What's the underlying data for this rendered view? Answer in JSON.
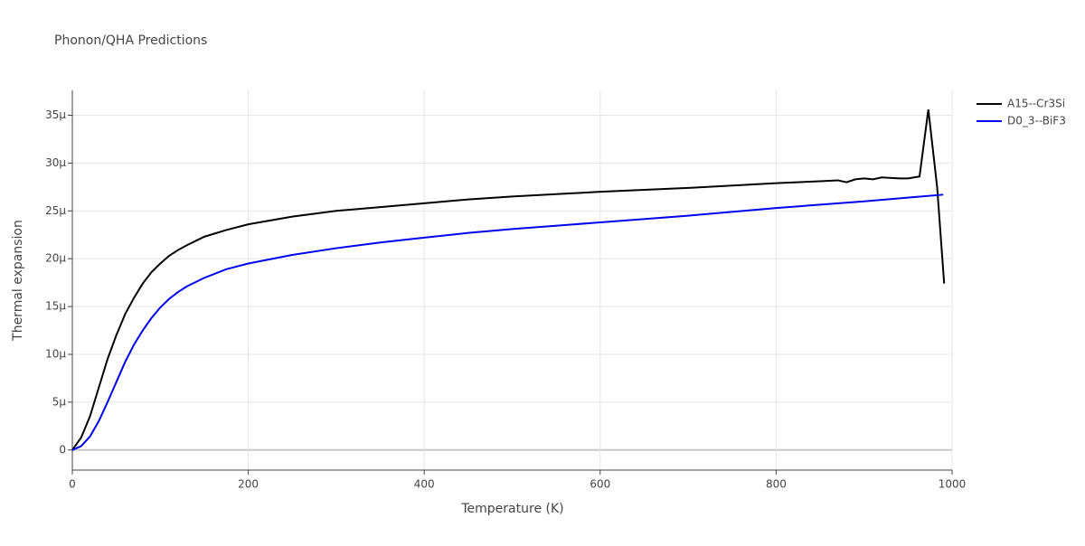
{
  "chart_data": {
    "type": "line",
    "title": "Phonon/QHA Predictions",
    "xlabel": "Temperature (K)",
    "ylabel": "Thermal expansion",
    "xlim": [
      0,
      1000
    ],
    "xticks": [
      0,
      200,
      400,
      600,
      800,
      1000
    ],
    "ylim": [
      -2.1e-06,
      3.76e-05
    ],
    "yticks": [
      0,
      {
        "value": 5e-06,
        "label": "5μ"
      },
      {
        "value": 1e-05,
        "label": "10μ"
      },
      {
        "value": 1.5e-05,
        "label": "15μ"
      },
      {
        "value": 2e-05,
        "label": "20μ"
      },
      {
        "value": 2.5e-05,
        "label": "25μ"
      },
      {
        "value": 3e-05,
        "label": "30μ"
      },
      {
        "value": 3.5e-05,
        "label": "35μ"
      }
    ],
    "grid": true,
    "series": [
      {
        "name": "A15--Cr3Si",
        "color": "#000000",
        "x": [
          0,
          10,
          20,
          30,
          40,
          50,
          60,
          70,
          80,
          90,
          100,
          110,
          120,
          130,
          150,
          175,
          200,
          250,
          300,
          350,
          400,
          450,
          500,
          600,
          700,
          800,
          850,
          870,
          880,
          890,
          900,
          910,
          920,
          940,
          950,
          963,
          973,
          983,
          991
        ],
        "values": [
          0,
          1.3e-06,
          3.5e-06,
          6.5e-06,
          9.5e-06,
          1.2e-05,
          1.42e-05,
          1.59e-05,
          1.74e-05,
          1.86e-05,
          1.95e-05,
          2.03e-05,
          2.09e-05,
          2.14e-05,
          2.23e-05,
          2.3e-05,
          2.36e-05,
          2.44e-05,
          2.5e-05,
          2.54e-05,
          2.58e-05,
          2.62e-05,
          2.65e-05,
          2.7e-05,
          2.74e-05,
          2.79e-05,
          2.81e-05,
          2.82e-05,
          2.8e-05,
          2.83e-05,
          2.84e-05,
          2.83e-05,
          2.85e-05,
          2.84e-05,
          2.84e-05,
          2.86e-05,
          3.56e-05,
          2.75e-05,
          1.74e-05
        ]
      },
      {
        "name": "D0_3--BiF3",
        "color": "#0000ee",
        "x": [
          0,
          10,
          20,
          30,
          40,
          50,
          60,
          70,
          80,
          90,
          100,
          110,
          120,
          130,
          150,
          175,
          200,
          250,
          300,
          350,
          400,
          450,
          500,
          600,
          700,
          800,
          900,
          990
        ],
        "values": [
          0,
          4e-07,
          1.4e-06,
          3e-06,
          5e-06,
          7.1e-06,
          9.2e-06,
          1.1e-05,
          1.25e-05,
          1.38e-05,
          1.49e-05,
          1.58e-05,
          1.65e-05,
          1.71e-05,
          1.8e-05,
          1.89e-05,
          1.95e-05,
          2.04e-05,
          2.11e-05,
          2.17e-05,
          2.22e-05,
          2.27e-05,
          2.31e-05,
          2.38e-05,
          2.45e-05,
          2.53e-05,
          2.6e-05,
          2.67e-05
        ]
      }
    ]
  }
}
